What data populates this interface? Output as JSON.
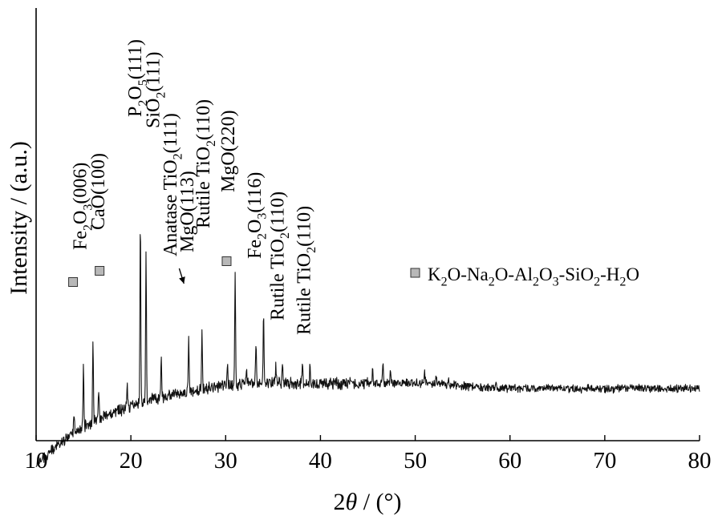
{
  "chart_data": {
    "type": "line",
    "xlabel_parts": [
      "2",
      "θ",
      " / (°)"
    ],
    "ylabel": "Intensity / (a.u.)",
    "xlim": [
      10,
      80
    ],
    "xticks": [
      10,
      20,
      30,
      40,
      50,
      60,
      70,
      80
    ],
    "y_units": "a.u.",
    "y_ticks_shown": false,
    "grid": false,
    "legend": {
      "placement": "right",
      "entries": [
        {
          "marker": "square",
          "marker_color": "#b8b8b8",
          "parts": [
            [
              "K",
              ""
            ],
            [
              "2",
              "sub"
            ],
            [
              "O-Na",
              ""
            ],
            [
              "2",
              "sub"
            ],
            [
              "O-Al",
              ""
            ],
            [
              "2",
              "sub"
            ],
            [
              "O",
              ""
            ],
            [
              "3",
              "sub"
            ],
            [
              "-SiO",
              ""
            ],
            [
              "2",
              "sub"
            ],
            [
              "-H",
              ""
            ],
            [
              "2",
              "sub"
            ],
            [
              "O",
              ""
            ]
          ]
        }
      ]
    },
    "series": [
      {
        "line_color": "#111111",
        "peaks": [
          {
            "x": 14.0,
            "h": 30
          },
          {
            "x": 15.0,
            "h": 78
          },
          {
            "x": 16.0,
            "h": 95
          },
          {
            "x": 16.6,
            "h": 40
          },
          {
            "x": 19.6,
            "h": 30
          },
          {
            "x": 21.0,
            "h": 228
          },
          {
            "x": 21.6,
            "h": 190
          },
          {
            "x": 23.2,
            "h": 50
          },
          {
            "x": 26.1,
            "h": 62
          },
          {
            "x": 27.5,
            "h": 75
          },
          {
            "x": 31.0,
            "h": 140
          },
          {
            "x": 30.2,
            "h": 30
          },
          {
            "x": 32.2,
            "h": 22
          },
          {
            "x": 33.2,
            "h": 50
          },
          {
            "x": 34.0,
            "h": 85
          },
          {
            "x": 35.3,
            "h": 22
          },
          {
            "x": 36.0,
            "h": 32
          },
          {
            "x": 38.1,
            "h": 28
          },
          {
            "x": 38.9,
            "h": 22
          },
          {
            "x": 45.5,
            "h": 22
          },
          {
            "x": 46.6,
            "h": 30
          },
          {
            "x": 47.4,
            "h": 16
          },
          {
            "x": 51.0,
            "h": 14
          },
          {
            "x": 52.2,
            "h": 12
          },
          {
            "x": 53.5,
            "h": 10
          },
          {
            "x": 58.5,
            "h": 8
          }
        ]
      }
    ],
    "markers": [
      {
        "x": 13.9,
        "ly": 352
      },
      {
        "x": 16.7,
        "ly": 338
      },
      {
        "x": 30.1,
        "ly": 326
      }
    ],
    "annotations": [
      {
        "x": 15.3,
        "ly": 312,
        "parts": [
          [
            "Fe",
            ""
          ],
          [
            "2",
            "sub"
          ],
          [
            "O",
            ""
          ],
          [
            "3",
            "sub"
          ],
          [
            "(006)",
            ""
          ]
        ]
      },
      {
        "x": 17.2,
        "ly": 287,
        "parts": [
          [
            "CaO(100)",
            ""
          ]
        ]
      },
      {
        "x": 21.1,
        "ly": 146,
        "parts": [
          [
            "P",
            ""
          ],
          [
            "2",
            "sub"
          ],
          [
            "O",
            ""
          ],
          [
            "5",
            "sub"
          ],
          [
            "(111)",
            ""
          ]
        ]
      },
      {
        "x": 23.0,
        "ly": 160,
        "parts": [
          [
            "SiO",
            ""
          ],
          [
            "2",
            "sub"
          ],
          [
            "(111)",
            ""
          ]
        ]
      },
      {
        "x": 24.8,
        "ly": 320,
        "parts": [
          [
            "Anatase TiO",
            ""
          ],
          [
            "2",
            "sub"
          ],
          [
            "(111)",
            ""
          ]
        ]
      },
      {
        "x": 26.6,
        "ly": 315,
        "parts": [
          [
            "MgO(113)",
            ""
          ]
        ]
      },
      {
        "x": 28.3,
        "ly": 285,
        "parts": [
          [
            "Rutile TiO",
            ""
          ],
          [
            "2",
            "sub"
          ],
          [
            "(110)",
            ""
          ]
        ]
      },
      {
        "x": 30.9,
        "ly": 240,
        "parts": [
          [
            "MgO(220)",
            ""
          ]
        ]
      },
      {
        "x": 33.7,
        "ly": 323,
        "parts": [
          [
            "Fe",
            ""
          ],
          [
            "2",
            "sub"
          ],
          [
            "O",
            ""
          ],
          [
            "3",
            "sub"
          ],
          [
            "(116)",
            ""
          ]
        ]
      },
      {
        "x": 36.1,
        "ly": 400,
        "parts": [
          [
            "Rutile TiO",
            ""
          ],
          [
            "2",
            "sub"
          ],
          [
            "(110)",
            ""
          ]
        ]
      },
      {
        "x": 38.9,
        "ly": 418,
        "parts": [
          [
            "Rutile TiO",
            ""
          ],
          [
            "2",
            "sub"
          ],
          [
            "(110)",
            ""
          ]
        ]
      }
    ],
    "arrow": {
      "from": [
        25.1,
        335
      ],
      "to": [
        25.6,
        354
      ]
    }
  }
}
